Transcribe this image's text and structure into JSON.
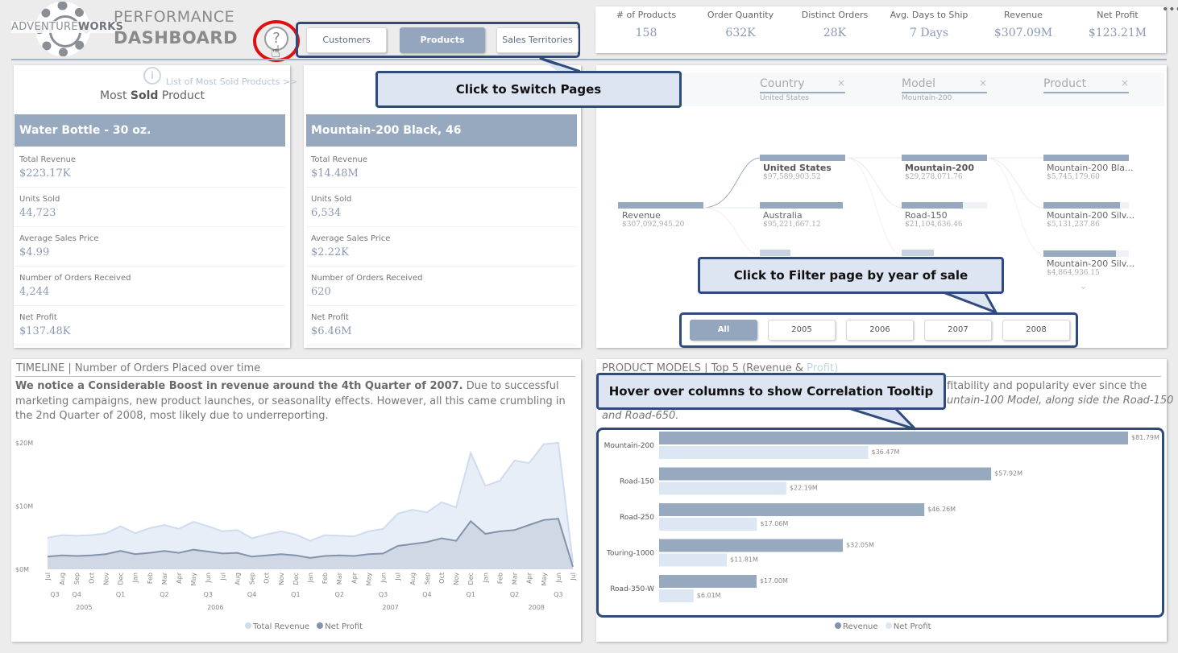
{
  "header": {
    "logo_text_a": "ADVENTURE",
    "logo_text_b": "WORKS",
    "title_line1": "PERFORMANCE",
    "title_line2": "DASHBOARD",
    "help_icon": "?",
    "nav": [
      "Customers",
      "Products",
      "Sales Territories"
    ],
    "nav_active": "Products",
    "menu_icon": "•••"
  },
  "kpis": [
    {
      "label": "# of Products",
      "value": "158"
    },
    {
      "label": "Order Quantity",
      "value": "632K"
    },
    {
      "label": "Distinct Orders",
      "value": "28K"
    },
    {
      "label": "Avg. Days to Ship",
      "value": "7 Days"
    },
    {
      "label": "Revenue",
      "value": "$307.09M"
    },
    {
      "label": "Net Profit",
      "value": "$123.21M"
    }
  ],
  "most_sold": {
    "link": "List of Most Sold Products >>",
    "info_icon": "i",
    "heading_pre": "Most",
    "heading_bold": "Sold",
    "heading_post": "Product",
    "product": "Water Bottle - 30 oz.",
    "stats": [
      {
        "label": "Total Revenue",
        "value": "$223.17K"
      },
      {
        "label": "Units Sold",
        "value": "44,723"
      },
      {
        "label": "Average Sales Price",
        "value": "$4.99"
      },
      {
        "label": "Number of Orders Received",
        "value": "4,244"
      },
      {
        "label": "Net Profit",
        "value": "$137.48K"
      }
    ]
  },
  "top_product": {
    "product": "Mountain-200 Black, 46",
    "stats": [
      {
        "label": "Total Revenue",
        "value": "$14.48M"
      },
      {
        "label": "Units Sold",
        "value": "6,534"
      },
      {
        "label": "Average Sales Price",
        "value": "$2.22K"
      },
      {
        "label": "Number of Orders Received",
        "value": "620"
      },
      {
        "label": "Net Profit",
        "value": "$6.46M"
      }
    ]
  },
  "tree": {
    "crumbs": [
      {
        "label": "Country",
        "sub": "United States",
        "close": "×"
      },
      {
        "label": "Model",
        "sub": "Mountain-200",
        "close": "×"
      },
      {
        "label": "Product",
        "sub": "",
        "close": "×"
      }
    ],
    "root": {
      "label": "Revenue",
      "value": "$307,092,945.20"
    },
    "countries": [
      {
        "label": "United States",
        "value": "$97,589,903.52"
      },
      {
        "label": "Australia",
        "value": "$95,221,667.12"
      }
    ],
    "models": [
      {
        "label": "Mountain-200",
        "value": "$29,278,071.76"
      },
      {
        "label": "Road-150",
        "value": "$21,104,636.46"
      }
    ],
    "products": [
      {
        "label": "Mountain-200 Bla...",
        "value": "$5,745,179.60"
      },
      {
        "label": "Mountain-200 Silv...",
        "value": "$5,131,237.86"
      },
      {
        "label": "Mountain-200 Silv...",
        "value": "$4,864,936.15"
      }
    ],
    "more_icon": "⌄"
  },
  "years": {
    "buttons": [
      "All",
      "2005",
      "2006",
      "2007",
      "2008"
    ],
    "active": "All"
  },
  "callouts": {
    "switch_pages": "Click to Switch Pages",
    "filter_year": "Click to Filter page by year of sale",
    "hover_columns": "Hover over columns to show Correlation Tooltip"
  },
  "timeline": {
    "title": "TIMELINE | Number of Orders Placed over time",
    "narr_bold": "We notice a Considerable Boost in revenue around the 4th Quarter of 2007.",
    "narr_rest": " Due to successful marketing campaigns, new product launches, or seasonality effects. However, all this came crumbling in the 2nd Quarter of 2008, most likely due to underreporting.",
    "legend": [
      {
        "name": "Total Revenue",
        "color": "#cfdcee"
      },
      {
        "name": "Net Profit",
        "color": "#8393ab"
      }
    ]
  },
  "models": {
    "title_a": "PRODUCT MODELS | Top 5 (Revenue &",
    "title_b": "Profit)",
    "narr_line1": "fitability and popularity ever since the",
    "narr_line2": "untain-100 Model, along side the Road-150",
    "narr_line3": "and Road-650.",
    "legend": [
      {
        "name": "Revenue",
        "color": "#8393ab"
      },
      {
        "name": "Net Profit",
        "color": "#dde6f3"
      }
    ]
  },
  "chart_data": [
    {
      "type": "area",
      "title": "TIMELINE | Number of Orders Placed over time",
      "x": [
        "Jul",
        "Aug",
        "Sep",
        "Oct",
        "Nov",
        "Dec",
        "Jan",
        "Feb",
        "Mar",
        "Apr",
        "May",
        "Jun",
        "Jul",
        "Aug",
        "Sep",
        "Oct",
        "Nov",
        "Dec",
        "Jan",
        "Feb",
        "Mar",
        "Apr",
        "May",
        "Jun",
        "Jul",
        "Aug",
        "Sep",
        "Oct",
        "Nov",
        "Dec",
        "Jan",
        "Feb",
        "Mar",
        "Apr",
        "May",
        "Jun",
        "Jul"
      ],
      "quarters": [
        "Q3",
        "Q4",
        "Q1",
        "Q2",
        "Q3",
        "Q4",
        "Q1",
        "Q2",
        "Q3",
        "Q4",
        "Q1",
        "Q2",
        "Q3"
      ],
      "years": [
        "2005",
        "2006",
        "2007",
        "2008"
      ],
      "y_ticks": [
        "$0M",
        "$10M",
        "$20M"
      ],
      "ylim": [
        0,
        20
      ],
      "series": [
        {
          "name": "Total Revenue",
          "values": [
            5.0,
            5.4,
            5.3,
            5.4,
            5.7,
            6.8,
            5.7,
            6.5,
            7.0,
            6.4,
            7.5,
            6.8,
            6.0,
            6.2,
            4.9,
            5.5,
            6.0,
            5.5,
            4.5,
            5.4,
            5.3,
            5.2,
            6.0,
            6.4,
            8.8,
            9.4,
            9.0,
            10.6,
            9.8,
            18.4,
            13.2,
            14.0,
            17.2,
            16.8,
            19.8,
            20.0,
            1.0
          ]
        },
        {
          "name": "Net Profit",
          "values": [
            2.0,
            2.2,
            2.1,
            2.2,
            2.4,
            2.9,
            2.4,
            2.6,
            2.9,
            2.6,
            3.1,
            2.8,
            2.5,
            2.6,
            2.0,
            2.2,
            2.4,
            2.2,
            1.8,
            2.1,
            2.2,
            2.1,
            2.4,
            2.5,
            3.7,
            4.0,
            4.3,
            4.9,
            4.5,
            7.6,
            5.6,
            6.0,
            6.2,
            7.0,
            7.8,
            8.0,
            0.4
          ]
        }
      ]
    },
    {
      "type": "bar",
      "title": "PRODUCT MODELS | Top 5 (Revenue & Profit)",
      "categories": [
        "Mountain-200",
        "Road-150",
        "Road-250",
        "Touring-1000",
        "Road-350-W"
      ],
      "series": [
        {
          "name": "Revenue",
          "values": [
            81.79,
            57.92,
            46.26,
            32.05,
            17.0
          ],
          "labels": [
            "$81.79M",
            "$57.92M",
            "$46.26M",
            "$32.05M",
            "$17.00M"
          ]
        },
        {
          "name": "Net Profit",
          "values": [
            36.47,
            22.19,
            17.06,
            11.81,
            6.01
          ],
          "labels": [
            "$36.47M",
            "$22.19M",
            "$17.06M",
            "$11.81M",
            "$6.01M"
          ]
        }
      ],
      "xlim": [
        0,
        81.79
      ]
    }
  ]
}
